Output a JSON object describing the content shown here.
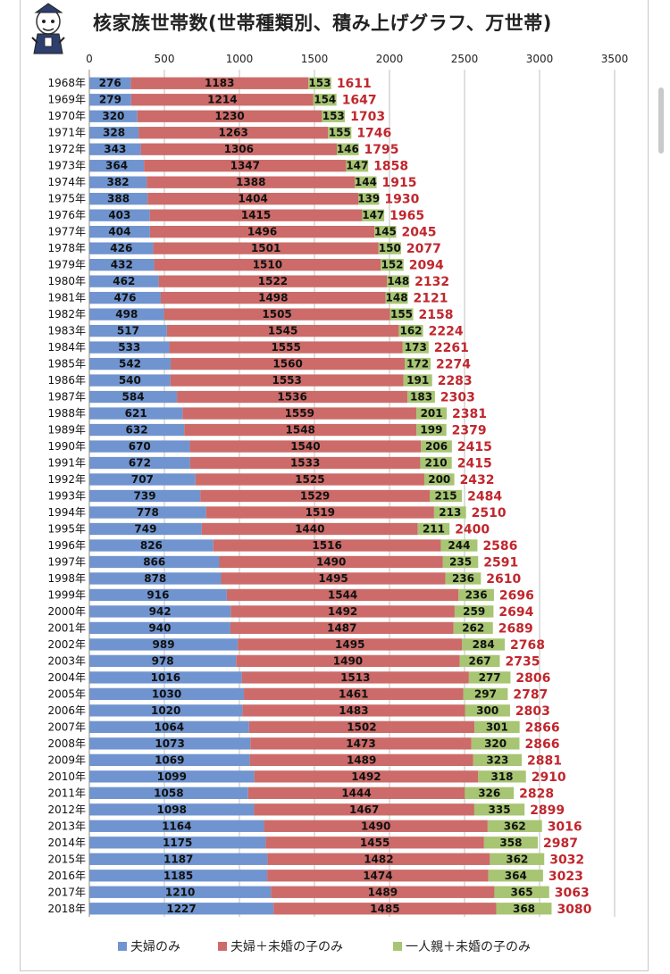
{
  "title": "核家族世帯数(世帯種類別、積み上げグラフ、万世帯)",
  "colors": {
    "series1": "#7094cf",
    "series2": "#cc6b69",
    "series3": "#a7c572",
    "total": "#c0272d",
    "grid": "#bfbfbf"
  },
  "chart_data": {
    "type": "bar",
    "orientation": "horizontal",
    "stacked": true,
    "title": "核家族世帯数(世帯種類別、積み上げグラフ、万世帯)",
    "xlim": [
      0,
      3500
    ],
    "x_ticks": [
      "0",
      "500",
      "1000",
      "1500",
      "2000",
      "2500",
      "3000",
      "3500"
    ],
    "grid": true,
    "legend_position": "bottom",
    "categories": [
      "1968年",
      "1969年",
      "1970年",
      "1971年",
      "1972年",
      "1973年",
      "1974年",
      "1975年",
      "1976年",
      "1977年",
      "1978年",
      "1979年",
      "1980年",
      "1981年",
      "1982年",
      "1983年",
      "1984年",
      "1985年",
      "1986年",
      "1987年",
      "1988年",
      "1989年",
      "1990年",
      "1991年",
      "1992年",
      "1993年",
      "1994年",
      "1995年",
      "1996年",
      "1997年",
      "1998年",
      "1999年",
      "2000年",
      "2001年",
      "2002年",
      "2003年",
      "2004年",
      "2005年",
      "2006年",
      "2007年",
      "2008年",
      "2009年",
      "2010年",
      "2011年",
      "2012年",
      "2013年",
      "2014年",
      "2015年",
      "2016年",
      "2017年",
      "2018年"
    ],
    "series": [
      {
        "name": "夫婦のみ",
        "values": [
          276,
          279,
          320,
          328,
          343,
          364,
          382,
          388,
          403,
          404,
          426,
          432,
          462,
          476,
          498,
          517,
          533,
          542,
          540,
          584,
          621,
          632,
          670,
          672,
          707,
          739,
          778,
          749,
          826,
          866,
          878,
          916,
          942,
          940,
          989,
          978,
          1016,
          1030,
          1020,
          1064,
          1073,
          1069,
          1099,
          1058,
          1098,
          1164,
          1175,
          1187,
          1185,
          1210,
          1227
        ]
      },
      {
        "name": "夫婦＋未婚の子のみ",
        "values": [
          1183,
          1214,
          1230,
          1263,
          1306,
          1347,
          1388,
          1404,
          1415,
          1496,
          1501,
          1510,
          1522,
          1498,
          1505,
          1545,
          1555,
          1560,
          1553,
          1536,
          1559,
          1548,
          1540,
          1533,
          1525,
          1529,
          1519,
          1440,
          1516,
          1490,
          1495,
          1544,
          1492,
          1487,
          1495,
          1490,
          1513,
          1461,
          1483,
          1502,
          1473,
          1489,
          1492,
          1444,
          1467,
          1490,
          1455,
          1482,
          1474,
          1489,
          1485
        ]
      },
      {
        "name": "一人親＋未婚の子のみ",
        "values": [
          153,
          154,
          153,
          155,
          146,
          147,
          144,
          139,
          147,
          145,
          150,
          152,
          148,
          148,
          155,
          162,
          173,
          172,
          191,
          183,
          201,
          199,
          206,
          210,
          200,
          215,
          213,
          211,
          244,
          235,
          236,
          236,
          259,
          262,
          284,
          267,
          277,
          297,
          300,
          301,
          320,
          323,
          318,
          326,
          335,
          362,
          358,
          362,
          364,
          365,
          368
        ]
      }
    ],
    "totals": [
      1611,
      1647,
      1703,
      1746,
      1795,
      1858,
      1915,
      1930,
      1965,
      2045,
      2077,
      2094,
      2132,
      2121,
      2158,
      2224,
      2261,
      2274,
      2283,
      2303,
      2381,
      2379,
      2415,
      2415,
      2432,
      2484,
      2510,
      2400,
      2586,
      2591,
      2610,
      2696,
      2694,
      2689,
      2768,
      2735,
      2806,
      2787,
      2803,
      2866,
      2866,
      2881,
      2910,
      2828,
      2899,
      3016,
      2987,
      3032,
      3023,
      3063,
      3080
    ]
  }
}
